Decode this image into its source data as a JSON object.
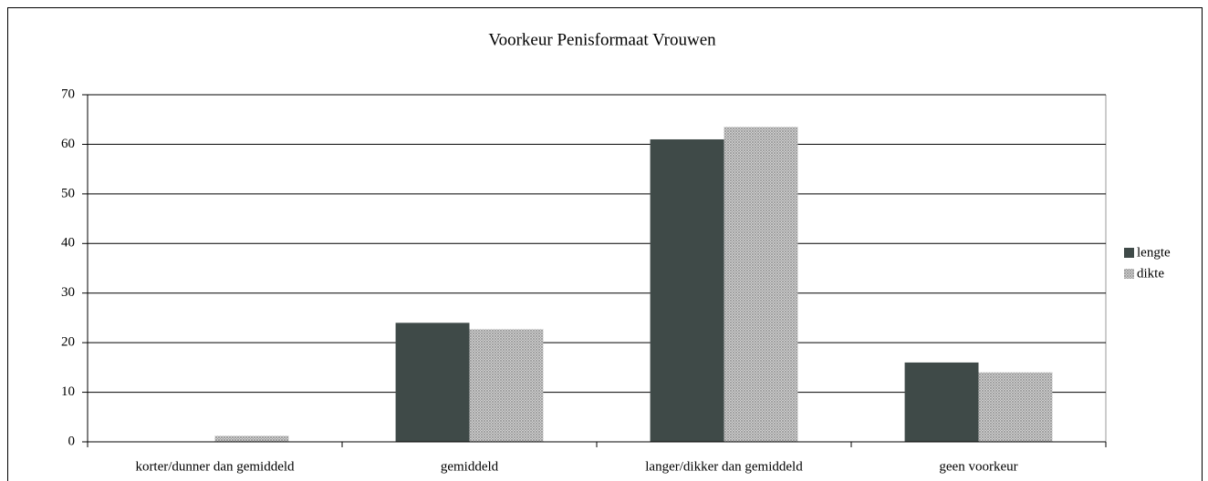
{
  "chart_data": {
    "type": "bar",
    "title": "Voorkeur Penisformaat Vrouwen",
    "categories": [
      "korter/dunner dan gemiddeld",
      "gemiddeld",
      "langer/dikker dan gemiddeld",
      "geen voorkeur"
    ],
    "series": [
      {
        "name": "lengte",
        "color": "#3f4a48",
        "values": [
          0,
          24,
          61,
          16
        ]
      },
      {
        "name": "dikte",
        "color": "#9a9a9a",
        "values": [
          1.2,
          22.7,
          63.5,
          14
        ]
      }
    ],
    "ylim": [
      0,
      70
    ],
    "yticks": [
      0,
      10,
      20,
      30,
      40,
      50,
      60,
      70
    ],
    "grid": true,
    "legend": "right"
  }
}
